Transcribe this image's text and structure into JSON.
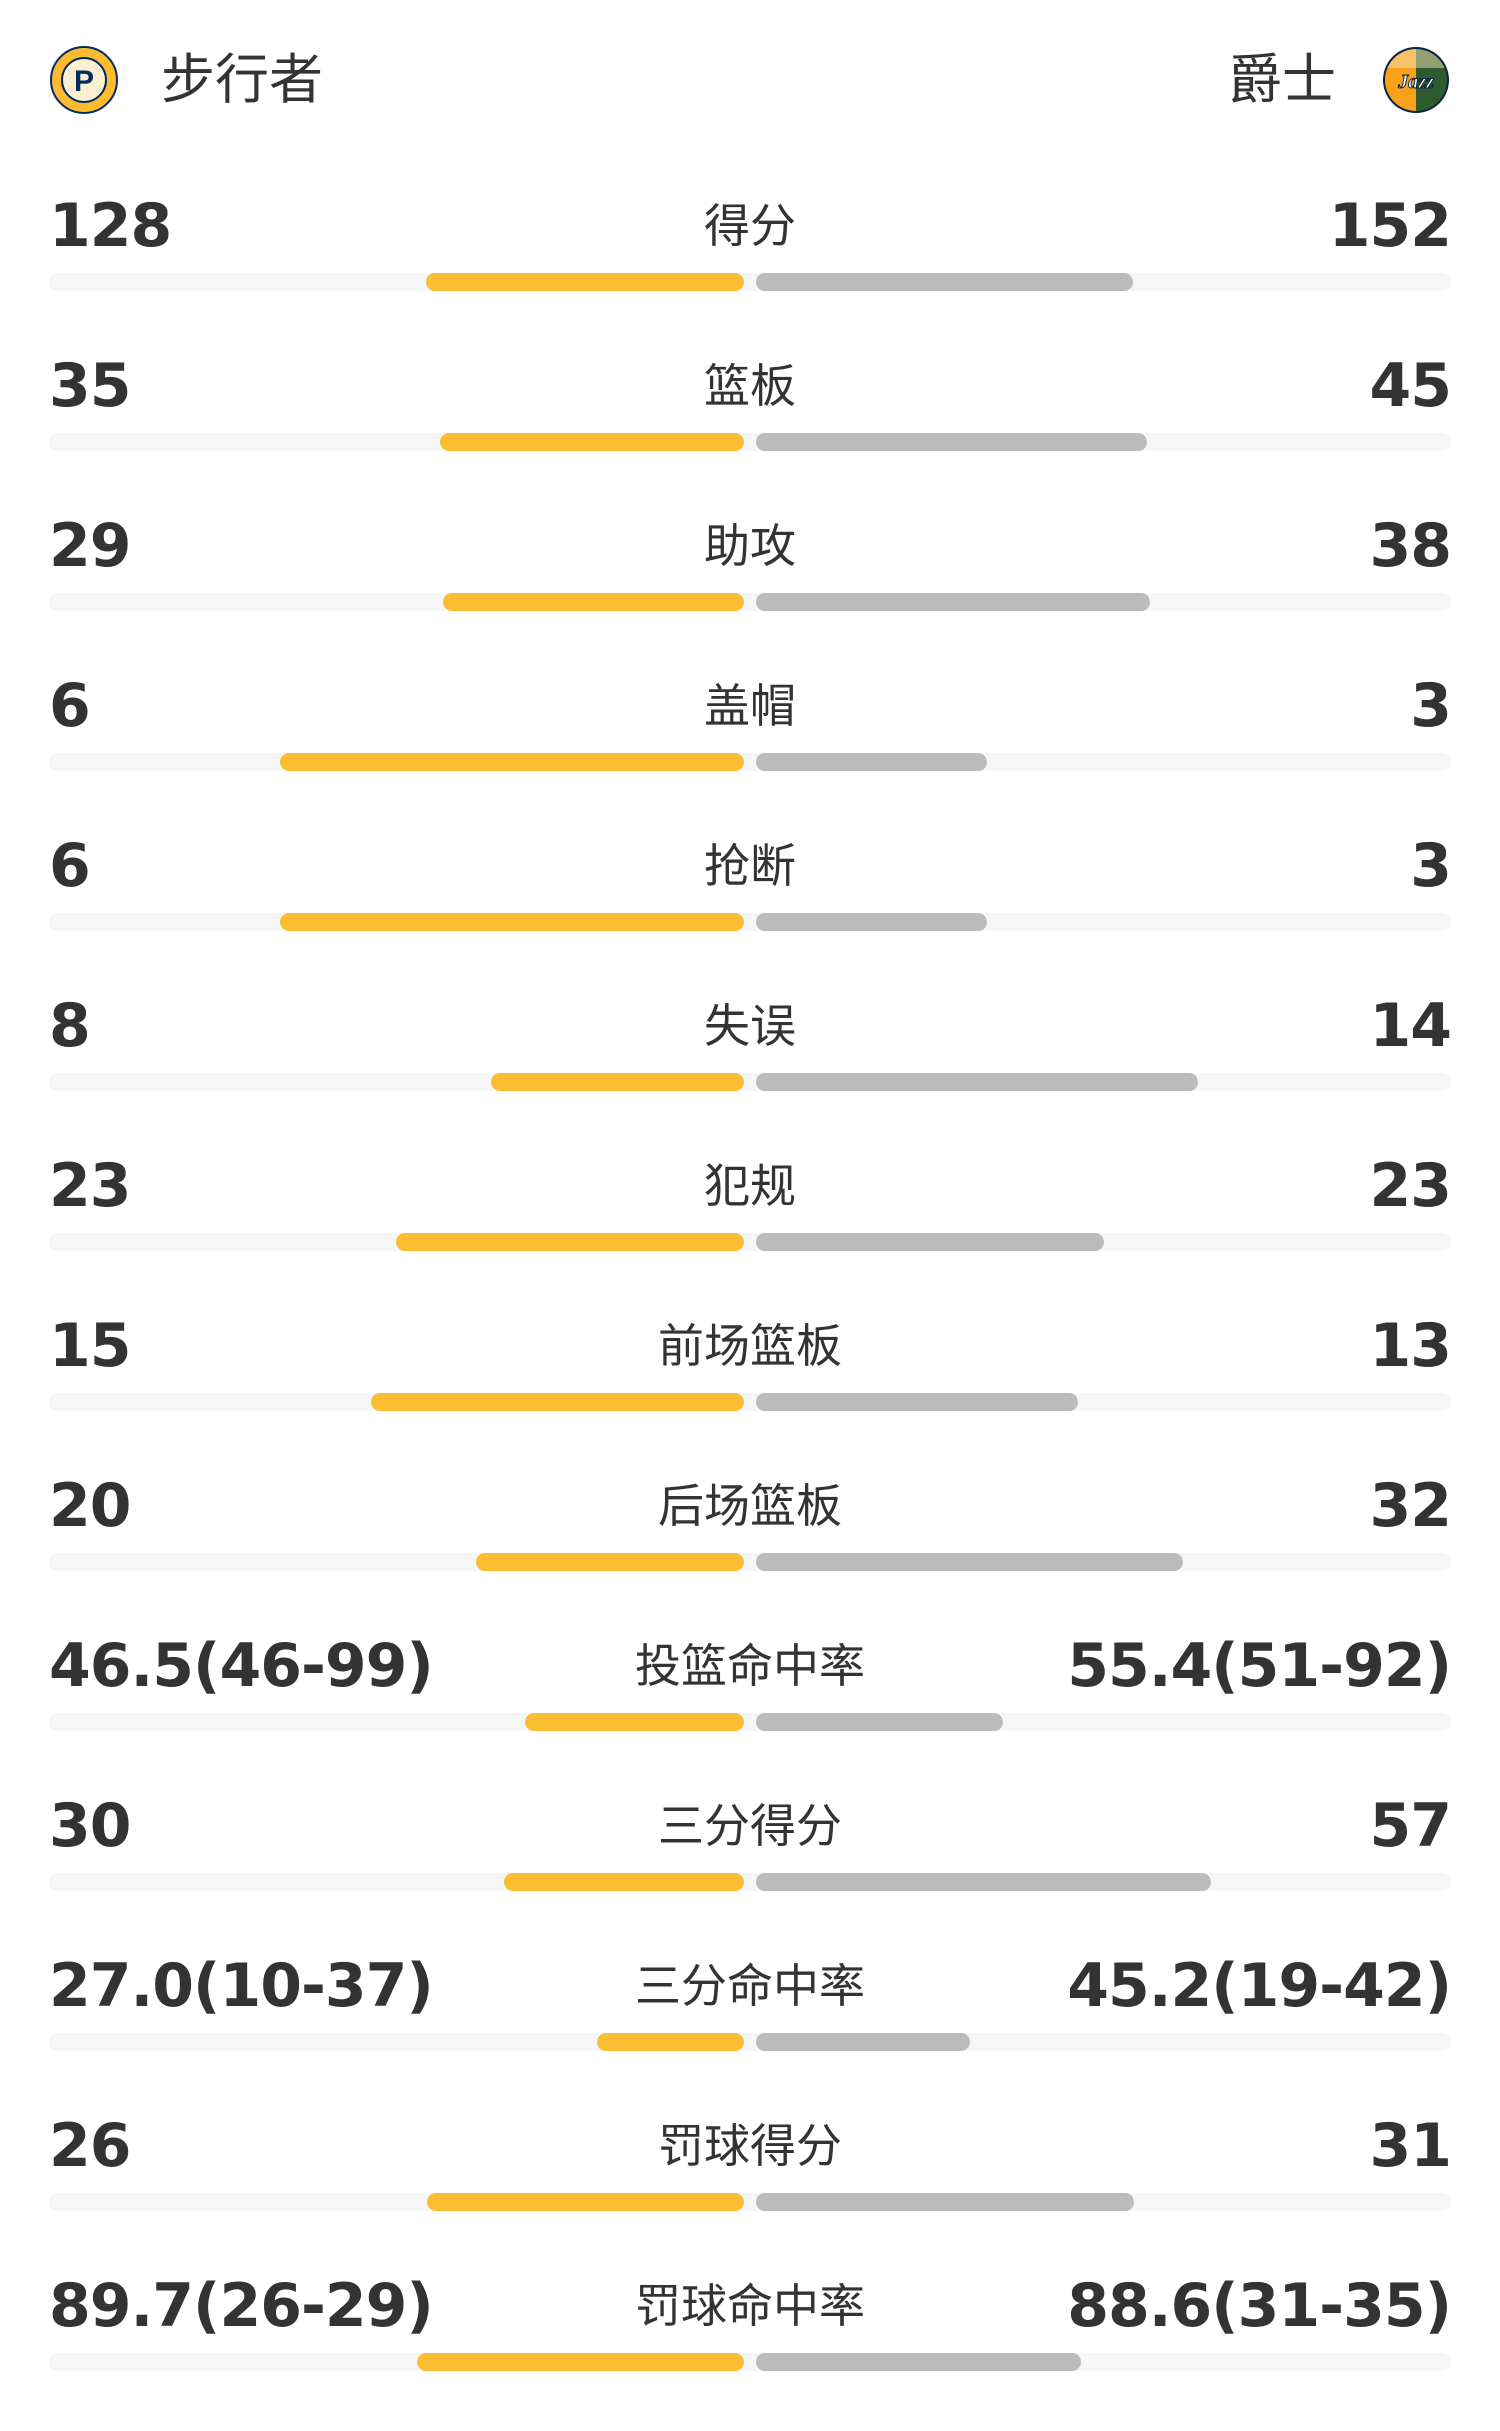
{
  "header": {
    "home_team": {
      "name": "步行者",
      "logo": "pacers-logo",
      "logo_text": "INDIANA PACERS P"
    },
    "away_team": {
      "name": "爵士",
      "logo": "jazz-logo",
      "logo_text": "Jazz"
    }
  },
  "colors": {
    "home_bar": "#fbbd32",
    "away_bar": "#bbbbbb",
    "track": "#f5f6f8"
  },
  "stats": [
    {
      "label": "得分",
      "home": "128",
      "away": "152",
      "home_fill": 0.457,
      "away_fill": 0.543
    },
    {
      "label": "篮板",
      "home": "35",
      "away": "45",
      "home_fill": 0.4375,
      "away_fill": 0.5625
    },
    {
      "label": "助攻",
      "home": "29",
      "away": "38",
      "home_fill": 0.433,
      "away_fill": 0.567
    },
    {
      "label": "盖帽",
      "home": "6",
      "away": "3",
      "home_fill": 0.667,
      "away_fill": 0.333
    },
    {
      "label": "抢断",
      "home": "6",
      "away": "3",
      "home_fill": 0.667,
      "away_fill": 0.333
    },
    {
      "label": "失误",
      "home": "8",
      "away": "14",
      "home_fill": 0.364,
      "away_fill": 0.636
    },
    {
      "label": "犯规",
      "home": "23",
      "away": "23",
      "home_fill": 0.5,
      "away_fill": 0.5
    },
    {
      "label": "前场篮板",
      "home": "15",
      "away": "13",
      "home_fill": 0.536,
      "away_fill": 0.464
    },
    {
      "label": "后场篮板",
      "home": "20",
      "away": "32",
      "home_fill": 0.385,
      "away_fill": 0.615
    },
    {
      "label": "投篮命中率",
      "home": "46.5(46-99)",
      "away": "55.4(51-92)",
      "home_fill": 0.315,
      "away_fill": 0.355
    },
    {
      "label": "三分得分",
      "home": "30",
      "away": "57",
      "home_fill": 0.345,
      "away_fill": 0.655
    },
    {
      "label": "三分命中率",
      "home": "27.0(10-37)",
      "away": "45.2(19-42)",
      "home_fill": 0.211,
      "away_fill": 0.308
    },
    {
      "label": "罚球得分",
      "home": "26",
      "away": "31",
      "home_fill": 0.456,
      "away_fill": 0.544
    },
    {
      "label": "罚球命中率",
      "home": "89.7(26-29)",
      "away": "88.6(31-35)",
      "home_fill": 0.471,
      "away_fill": 0.467
    }
  ]
}
